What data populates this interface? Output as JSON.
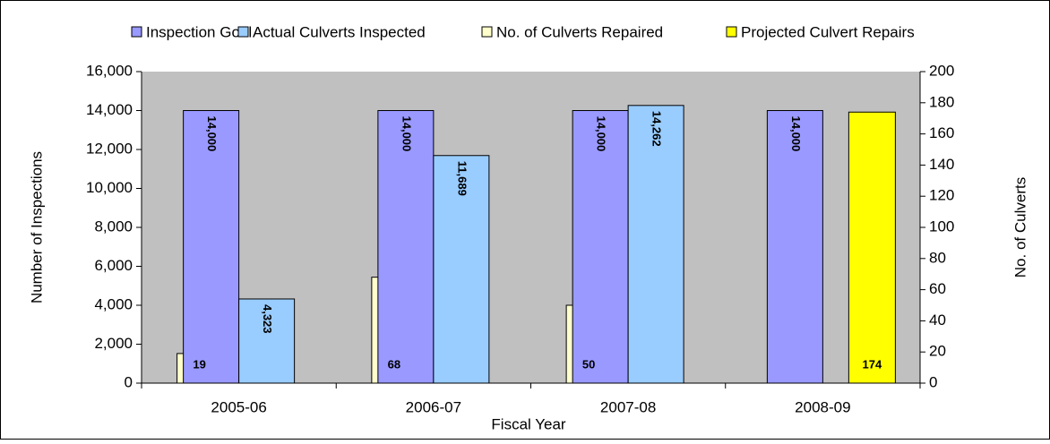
{
  "chart_data": {
    "type": "bar",
    "x_label": "Fiscal Year",
    "y_label": "Number of Inspections",
    "y2_label": "No. of Culverts",
    "categories": [
      "2005-06",
      "2006-07",
      "2007-08",
      "2008-09"
    ],
    "series": [
      {
        "name": "Inspection Goal",
        "color": "#9999ff",
        "values": [
          14000,
          14000,
          14000,
          14000
        ],
        "value_labels": [
          "14,000",
          "14,000",
          "14,000",
          "14,000"
        ]
      },
      {
        "name": "Actual Culverts Inspected",
        "color": "#99ccff",
        "values": [
          4323,
          11689,
          14262,
          null
        ],
        "value_labels": [
          "4,323",
          "11,689",
          "14,262",
          null
        ]
      },
      {
        "name": "No. of Culverts Repaired",
        "color": "#ffffcc",
        "axis": "y2",
        "values": [
          19,
          68,
          50,
          null
        ]
      },
      {
        "name": "Projected Culvert Repairs",
        "color": "#ffff00",
        "axis": "y2",
        "values": [
          null,
          null,
          null,
          174
        ]
      }
    ],
    "ylim": [
      0,
      16000
    ],
    "yticks": [
      0,
      {
        "value": 2000,
        "label": "2,000"
      },
      {
        "value": 4000,
        "label": "4,000"
      },
      {
        "value": 6000,
        "label": "6,000"
      },
      {
        "value": 8000,
        "label": "8,000"
      },
      {
        "value": 10000,
        "label": "10,000"
      },
      {
        "value": 12000,
        "label": "12,000"
      },
      {
        "value": 14000,
        "label": "14,000"
      },
      {
        "value": 16000,
        "label": "16,000"
      }
    ],
    "y2lim": [
      0,
      200
    ],
    "y2ticks": [
      0,
      20,
      40,
      60,
      80,
      100,
      120,
      140,
      160,
      180,
      200
    ],
    "legend": "top",
    "plot_background": "#c0c0c0"
  }
}
